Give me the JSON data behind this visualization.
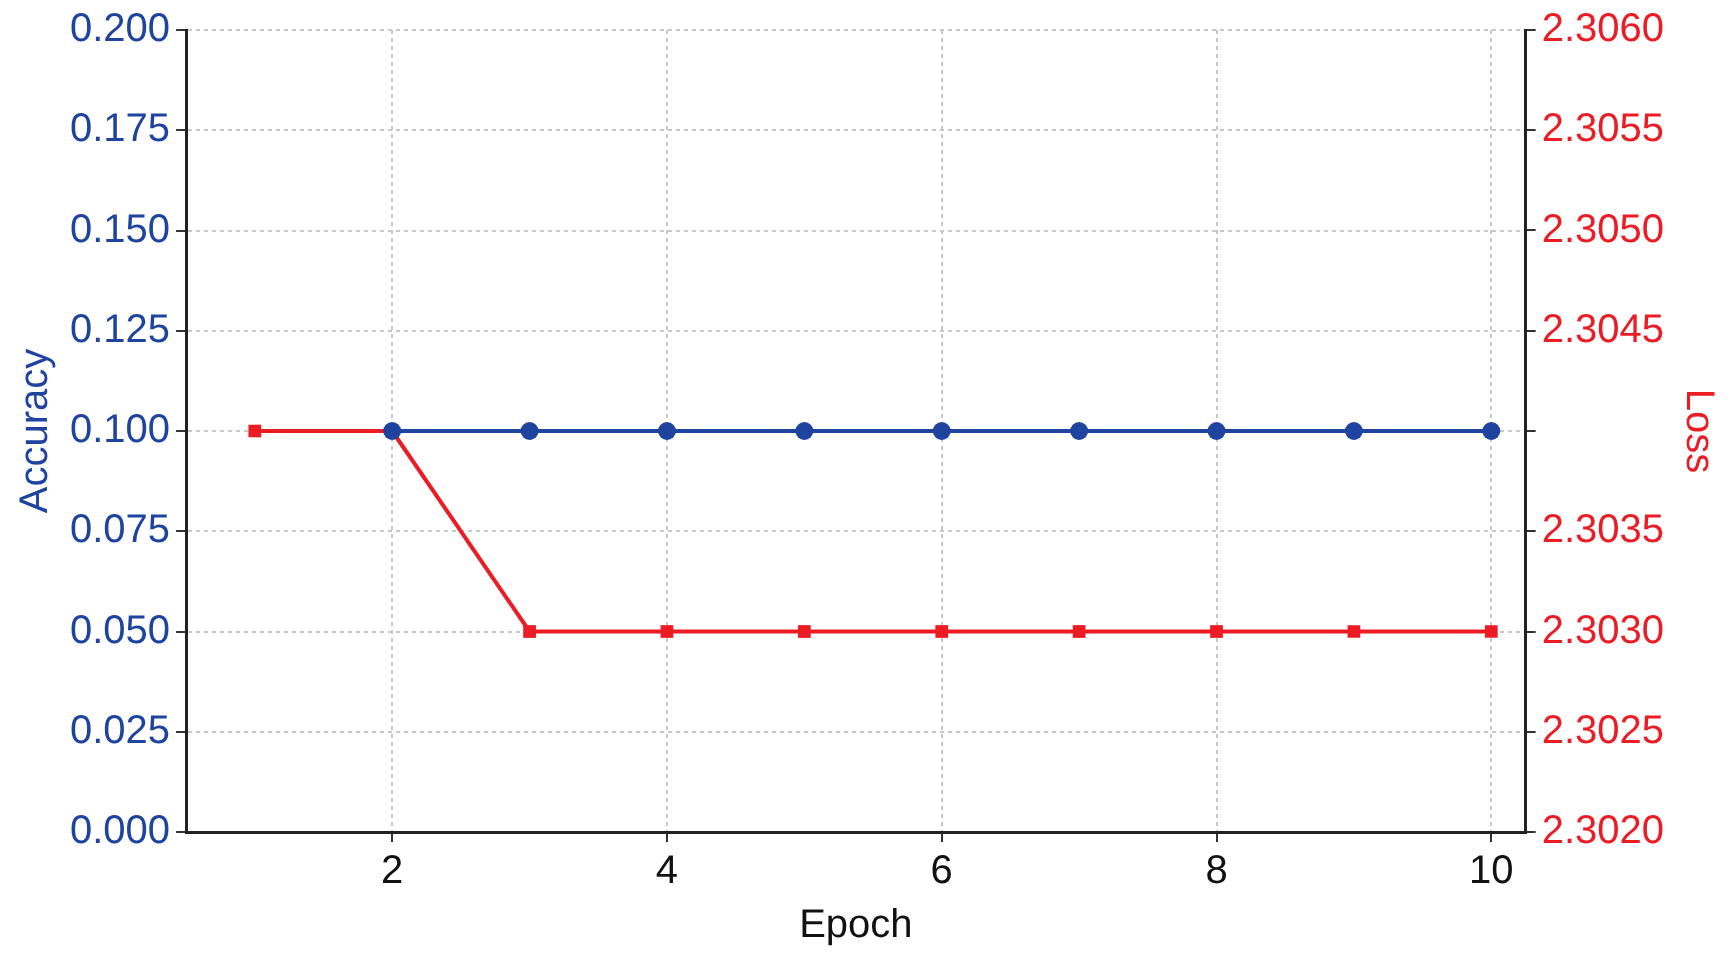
{
  "chart_data": {
    "type": "line",
    "xlabel": "Epoch",
    "ylabel": "Accuracy",
    "y2label": "Loss",
    "x": [
      1,
      2,
      3,
      4,
      5,
      6,
      7,
      8,
      9,
      10
    ],
    "series": [
      {
        "color": "#1f44a0",
        "marker": "circle",
        "values": [
          null,
          0.1,
          0.1,
          0.1,
          0.1,
          0.1,
          0.1,
          0.1,
          0.1,
          0.1
        ]
      },
      {
        "color": "#ec1c24",
        "marker": "square",
        "axis": "y2",
        "values": [
          2.304,
          2.304,
          2.303,
          2.303,
          2.303,
          2.303,
          2.303,
          2.303,
          2.303,
          2.303
        ]
      }
    ],
    "xlim": [
      0.5,
      10.25
    ],
    "xticks": [
      2,
      4,
      6,
      8,
      10
    ],
    "ylim": [
      0,
      0.2
    ],
    "yticks": [
      {
        "value": 0,
        "label": "0.000"
      },
      {
        "value": 0.025,
        "label": "0.025"
      },
      {
        "value": 0.05,
        "label": "0.050"
      },
      {
        "value": 0.075,
        "label": "0.075"
      },
      {
        "value": 0.1,
        "label": "0.100"
      },
      {
        "value": 0.125,
        "label": "0.125"
      },
      {
        "value": 0.15,
        "label": "0.150"
      },
      {
        "value": 0.175,
        "label": "0.175"
      },
      {
        "value": 0.2,
        "label": "0.200"
      }
    ],
    "y2lim": [
      2.302,
      2.306
    ],
    "y2ticks": [
      {
        "value": 2.302,
        "label": "2.3020"
      },
      {
        "value": 2.3025,
        "label": "2.3025"
      },
      {
        "value": 2.303,
        "label": "2.3030"
      },
      {
        "value": 2.3035,
        "label": "2.3035"
      },
      {
        "value": 2.304,
        "label": null
      },
      {
        "value": 2.3045,
        "label": "2.3045"
      },
      {
        "value": 2.305,
        "label": "2.3050"
      },
      {
        "value": 2.3055,
        "label": "2.3055"
      },
      {
        "value": 2.306,
        "label": "2.3060"
      }
    ],
    "grid": true,
    "legend": false,
    "line_style": "solid"
  }
}
